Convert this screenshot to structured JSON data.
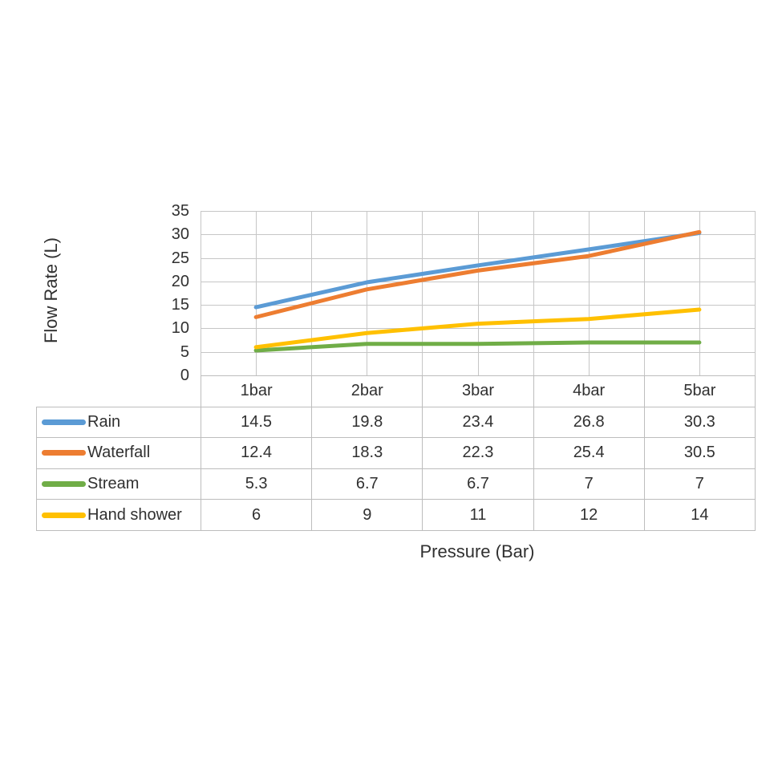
{
  "chart_data": {
    "type": "line",
    "title": "",
    "xlabel": "Pressure (Bar)",
    "ylabel": "Flow Rate (L)",
    "categories": [
      "1bar",
      "2bar",
      "3bar",
      "4bar",
      "5bar"
    ],
    "series": [
      {
        "name": "Rain",
        "color": "#5B9BD5",
        "values": [
          14.5,
          19.8,
          23.4,
          26.8,
          30.3
        ]
      },
      {
        "name": "Waterfall",
        "color": "#ED7D31",
        "values": [
          12.4,
          18.3,
          22.3,
          25.4,
          30.5
        ]
      },
      {
        "name": "Stream",
        "color": "#70AD47",
        "values": [
          5.3,
          6.7,
          6.7,
          7,
          7
        ]
      },
      {
        "name": "Hand shower",
        "color": "#FFC000",
        "values": [
          6,
          9,
          11,
          12,
          14
        ]
      }
    ],
    "yticks": [
      0,
      5,
      10,
      15,
      20,
      25,
      30,
      35
    ],
    "ylim": [
      0,
      35
    ],
    "grid": true,
    "gridline_color": "#C6C6C6",
    "axis_line_color": "#A6A6A6",
    "table_border_color": "#BDBDBD",
    "text_color": "#303030",
    "legend_position": "table-left",
    "data_table_shown": true
  }
}
